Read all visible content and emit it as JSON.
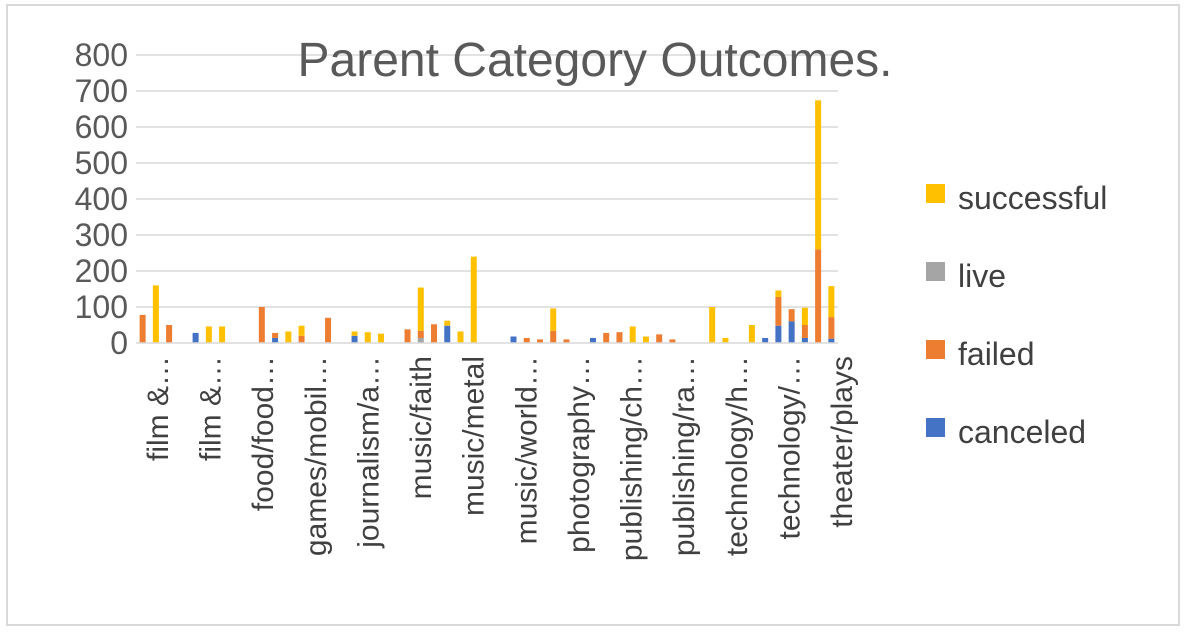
{
  "chart_data": {
    "type": "bar",
    "stacked": true,
    "title": "Parent Category Outcomes.",
    "xlabel": "",
    "ylabel": "",
    "ylim": [
      0,
      800
    ],
    "yticks": [
      0,
      100,
      200,
      300,
      400,
      500,
      600,
      700,
      800
    ],
    "grid": true,
    "legend_position": "right",
    "legend_order": [
      "successful",
      "live",
      "failed",
      "canceled"
    ],
    "colors": {
      "canceled": "#4472C4",
      "failed": "#ED7D31",
      "live": "#A5A5A5",
      "successful": "#FFC000"
    },
    "x_tick_labels": [
      "film &…",
      "film &…",
      "food/food…",
      "games/mobil…",
      "journalism/a…",
      "music/faith",
      "music/metal",
      "music/world…",
      "photography…",
      "publishing/ch…",
      "publishing/ra…",
      "technology/h…",
      "technology/…",
      "theater/plays"
    ],
    "series": [
      {
        "name": "canceled",
        "values": [
          0,
          0,
          0,
          0,
          28,
          0,
          0,
          0,
          0,
          0,
          14,
          0,
          0,
          0,
          0,
          0,
          20,
          0,
          0,
          0,
          0,
          0,
          0,
          48,
          0,
          0,
          0,
          0,
          18,
          0,
          0,
          0,
          0,
          0,
          14,
          0,
          0,
          0,
          0,
          0,
          0,
          0,
          0,
          0,
          0,
          0,
          0,
          14,
          48,
          60,
          14,
          0,
          12
        ]
      },
      {
        "name": "live",
        "values": [
          0,
          0,
          0,
          0,
          0,
          0,
          0,
          0,
          0,
          0,
          0,
          0,
          0,
          0,
          0,
          0,
          0,
          0,
          0,
          0,
          0,
          14,
          0,
          0,
          0,
          0,
          0,
          0,
          0,
          0,
          0,
          0,
          0,
          0,
          0,
          0,
          0,
          0,
          0,
          0,
          0,
          0,
          0,
          0,
          0,
          0,
          0,
          0,
          0,
          0,
          0,
          0,
          0
        ]
      },
      {
        "name": "failed",
        "values": [
          78,
          0,
          50,
          0,
          0,
          0,
          0,
          0,
          0,
          100,
          14,
          0,
          20,
          0,
          70,
          0,
          0,
          0,
          0,
          0,
          38,
          20,
          52,
          0,
          0,
          0,
          0,
          0,
          0,
          14,
          10,
          34,
          10,
          0,
          0,
          28,
          30,
          0,
          0,
          24,
          10,
          0,
          0,
          0,
          0,
          0,
          0,
          0,
          80,
          34,
          36,
          260,
          60
        ]
      },
      {
        "name": "successful",
        "values": [
          0,
          160,
          0,
          0,
          0,
          46,
          46,
          0,
          0,
          0,
          0,
          32,
          28,
          0,
          0,
          0,
          12,
          30,
          26,
          0,
          0,
          120,
          0,
          14,
          32,
          240,
          0,
          0,
          0,
          0,
          0,
          62,
          0,
          0,
          0,
          0,
          0,
          46,
          18,
          0,
          0,
          0,
          0,
          100,
          14,
          0,
          50,
          0,
          18,
          0,
          48,
          414,
          86
        ]
      }
    ]
  }
}
